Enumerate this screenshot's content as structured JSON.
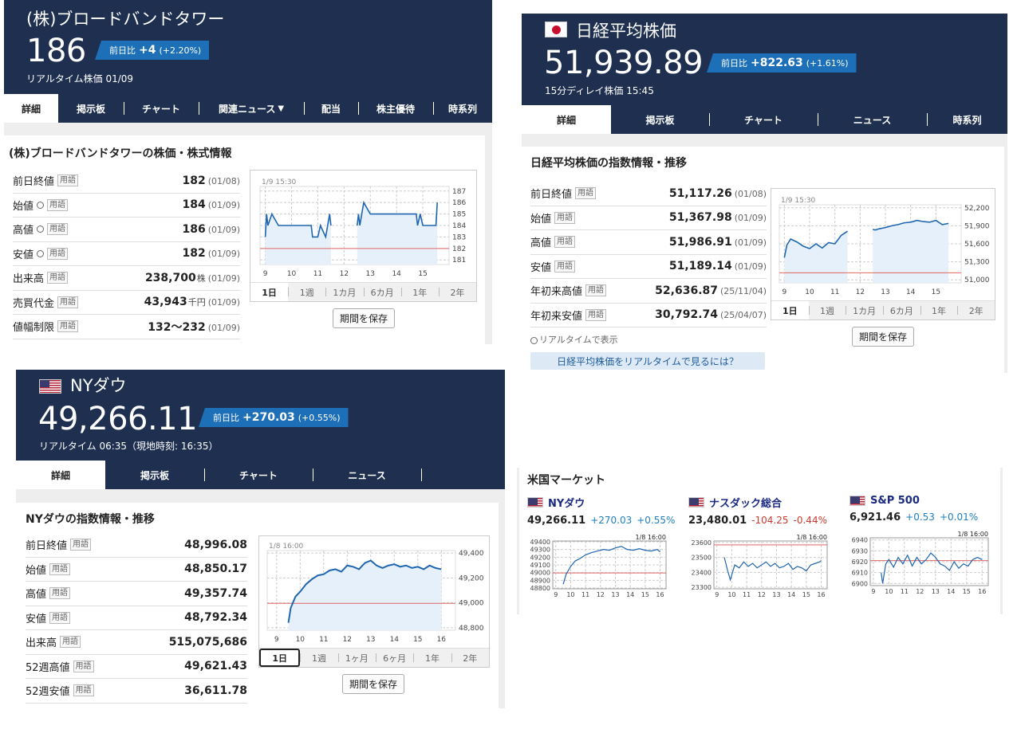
{
  "bbt": {
    "name": "(株)ブロードバンドタワー",
    "price": "186",
    "badge_label": "前日比",
    "change": "+4",
    "change_pct": "(+2.20%)",
    "realtime": "リアルタイム株価 01/09",
    "tabs": [
      "詳細",
      "掲示板",
      "チャート",
      "関連ニュース",
      "配当",
      "株主優待",
      "時系列"
    ],
    "section_title": "(株)ブロードバンドタワーの株価・株式情報",
    "rows": [
      {
        "label": "前日終値",
        "clock": false,
        "value": "182",
        "unit": "",
        "date": "(01/08)"
      },
      {
        "label": "始値",
        "clock": true,
        "value": "184",
        "unit": "",
        "date": "(01/09)"
      },
      {
        "label": "高値",
        "clock": true,
        "value": "186",
        "unit": "",
        "date": "(01/09)"
      },
      {
        "label": "安値",
        "clock": true,
        "value": "182",
        "unit": "",
        "date": "(01/09)"
      },
      {
        "label": "出来高",
        "clock": false,
        "value": "238,700",
        "unit": "株",
        "date": "(01/09)"
      },
      {
        "label": "売買代金",
        "clock": false,
        "value": "43,943",
        "unit": "千円",
        "date": "(01/09)"
      },
      {
        "label": "値幅制限",
        "clock": false,
        "value": "132〜232",
        "unit": "",
        "date": "(01/09)"
      }
    ],
    "term_label": "用語",
    "save_label": "期間を保存",
    "chart_tabs": [
      "1日",
      "1週",
      "1カ月",
      "6カ月",
      "1年",
      "2年"
    ]
  },
  "nikkei": {
    "name": "日経平均株価",
    "price": "51,939.89",
    "badge_label": "前日比",
    "change": "+822.63",
    "change_pct": "(+1.61%)",
    "realtime": "15分ディレイ株価 15:45",
    "tabs": [
      "詳細",
      "掲示板",
      "チャート",
      "ニュース",
      "時系列"
    ],
    "section_title": "日経平均株価の指数情報・推移",
    "rows": [
      {
        "label": "前日終値",
        "value": "51,117.26",
        "date": "(01/08)"
      },
      {
        "label": "始値",
        "value": "51,367.98",
        "date": "(01/09)"
      },
      {
        "label": "高値",
        "value": "51,986.91",
        "date": "(01/09)"
      },
      {
        "label": "安値",
        "value": "51,189.14",
        "date": "(01/09)"
      },
      {
        "label": "年初来高値",
        "value": "52,636.87",
        "date": "(25/11/04)"
      },
      {
        "label": "年初来安値",
        "value": "30,792.74",
        "date": "(25/04/07)"
      }
    ],
    "term_label": "用語",
    "realtime_note": "リアルタイムで表示",
    "realtime_link": "日経平均株価をリアルタイムで見るには？",
    "save_label": "期間を保存",
    "chart_tabs": [
      "1日",
      "1週",
      "1カ月",
      "6カ月",
      "1年",
      "2年"
    ]
  },
  "dow": {
    "name": "NYダウ",
    "price": "49,266.11",
    "badge_label": "前日比",
    "change": "+270.03",
    "change_pct": "(+0.55%)",
    "realtime": "リアルタイム 06:35（現地時刻: 16:35）",
    "tabs": [
      "詳細",
      "掲示板",
      "チャート",
      "ニュース",
      ""
    ],
    "section_title": "NYダウの指数情報・推移",
    "rows": [
      {
        "label": "前日終値",
        "value": "48,996.08"
      },
      {
        "label": "始値",
        "value": "48,850.17"
      },
      {
        "label": "高値",
        "value": "49,357.74"
      },
      {
        "label": "安値",
        "value": "48,792.34"
      },
      {
        "label": "出来高",
        "value": "515,075,686"
      },
      {
        "label": "52週高値",
        "value": "49,621.43"
      },
      {
        "label": "52週安値",
        "value": "36,611.78"
      }
    ],
    "term_label": "用語",
    "save_label": "期間を保存",
    "chart_tabs": [
      "1日",
      "1週",
      "1ヶ月",
      "6ヶ月",
      "1年",
      "2年"
    ]
  },
  "us_market": {
    "title": "米国マーケット",
    "items": [
      {
        "name": "NYダウ",
        "price": "49,266.11",
        "change": "+270.03",
        "pct": "+0.55%",
        "dir": "up"
      },
      {
        "name": "ナスダック総合",
        "price": "23,480.01",
        "change": "-104.25",
        "pct": "-0.44%",
        "dir": "down"
      },
      {
        "name": "S&P 500",
        "price": "6,921.46",
        "change": "+0.53",
        "pct": "+0.01%",
        "dir": "up"
      }
    ]
  },
  "chart_data": [
    {
      "id": "bbt",
      "type": "line",
      "timestamp": "1/9 15:30",
      "x_ticks": [
        "9",
        "10",
        "11",
        "12",
        "13",
        "14",
        "15"
      ],
      "y_ticks": [
        "187",
        "186",
        "185",
        "184",
        "183",
        "182",
        "181"
      ],
      "ylim": [
        180.6,
        187.4
      ],
      "xlim": [
        8.8,
        16
      ],
      "ref_value": 182,
      "x": [
        9,
        9.05,
        9.1,
        9.25,
        9.5,
        9.75,
        10,
        10.25,
        10.5,
        10.75,
        10.8,
        11,
        11.1,
        11.3,
        11.45,
        11.5,
        12.5,
        12.55,
        12.6,
        12.75,
        13,
        13.25,
        13.5,
        13.75,
        14,
        14.25,
        14.5,
        14.75,
        14.8,
        14.9,
        15,
        15.25,
        15.5,
        15.55
      ],
      "values": [
        183,
        185,
        184,
        185,
        184,
        184,
        184,
        184,
        184,
        184,
        183,
        183,
        184,
        183,
        185,
        184,
        184,
        185,
        184,
        186,
        185,
        185,
        185,
        185,
        185,
        185,
        185,
        185,
        184,
        185,
        184,
        184,
        184,
        186
      ]
    },
    {
      "id": "nikkei",
      "type": "line",
      "timestamp": "1/9 15:30",
      "x_ticks": [
        "9",
        "10",
        "11",
        "12",
        "13",
        "14",
        "15"
      ],
      "y_ticks": [
        "52,200",
        "51,900",
        "51,600",
        "51,300",
        "51,000"
      ],
      "ylim": [
        50950,
        52250
      ],
      "xlim": [
        8.8,
        16
      ],
      "ref_value": 51117,
      "x": [
        9,
        9.1,
        9.25,
        9.5,
        9.75,
        10,
        10.25,
        10.5,
        10.75,
        11,
        11.25,
        11.5,
        12.5,
        12.6,
        12.75,
        13,
        13.25,
        13.5,
        13.75,
        14,
        14.25,
        14.5,
        14.75,
        15,
        15.25,
        15.5
      ],
      "values": [
        51370,
        51580,
        51680,
        51630,
        51560,
        51520,
        51600,
        51530,
        51620,
        51600,
        51740,
        51810,
        51840,
        51830,
        51850,
        51870,
        51900,
        51920,
        51950,
        51960,
        51990,
        51970,
        51960,
        51990,
        51920,
        51940
      ]
    },
    {
      "id": "dow",
      "type": "line",
      "timestamp": "1/8 16:00",
      "x_ticks": [
        "9",
        "10",
        "11",
        "12",
        "13",
        "14",
        "15",
        "16"
      ],
      "y_ticks": [
        "49,400",
        "49,200",
        "49,000",
        "48,800"
      ],
      "ylim": [
        48780,
        49420
      ],
      "xlim": [
        8.6,
        16.6
      ],
      "ref_value": 48996,
      "x": [
        9.5,
        9.6,
        9.8,
        10,
        10.25,
        10.5,
        10.75,
        11,
        11.25,
        11.5,
        11.75,
        12,
        12.25,
        12.5,
        12.75,
        13,
        13.25,
        13.5,
        13.75,
        14,
        14.25,
        14.5,
        14.75,
        15,
        15.25,
        15.5,
        15.75,
        16
      ],
      "values": [
        48840,
        48960,
        49050,
        49090,
        49150,
        49190,
        49220,
        49230,
        49260,
        49270,
        49250,
        49300,
        49290,
        49270,
        49320,
        49340,
        49300,
        49280,
        49300,
        49310,
        49290,
        49300,
        49280,
        49290,
        49270,
        49300,
        49280,
        49270
      ]
    },
    {
      "id": "us1",
      "type": "line",
      "timestamp": "1/8 16:00",
      "x_ticks": [
        "9",
        "10",
        "11",
        "12",
        "13",
        "14",
        "15",
        "16"
      ],
      "y_ticks": [
        "49400",
        "49300",
        "49200",
        "49100",
        "49000",
        "48900",
        "48800"
      ],
      "ylim": [
        48790,
        49410
      ],
      "xlim": [
        8.8,
        16.4
      ],
      "ref_value": 48996,
      "x": [
        9.5,
        9.7,
        10,
        10.3,
        10.6,
        11,
        11.4,
        11.8,
        12.2,
        12.6,
        13,
        13.4,
        13.8,
        14.2,
        14.6,
        15,
        15.4,
        15.8,
        16
      ],
      "values": [
        48850,
        48980,
        49080,
        49150,
        49180,
        49230,
        49260,
        49280,
        49300,
        49290,
        49320,
        49340,
        49300,
        49290,
        49310,
        49290,
        49280,
        49300,
        49270
      ]
    },
    {
      "id": "us2",
      "type": "line",
      "timestamp": "1/8 16:00",
      "x_ticks": [
        "9",
        "10",
        "11",
        "12",
        "13",
        "14",
        "15",
        "16"
      ],
      "y_ticks": [
        "23600",
        "23500",
        "23400",
        "23300"
      ],
      "ylim": [
        23290,
        23610
      ],
      "xlim": [
        8.8,
        16.4
      ],
      "ref_value": 23584,
      "x": [
        9.5,
        9.7,
        9.9,
        10.2,
        10.5,
        10.8,
        11.1,
        11.4,
        11.7,
        12,
        12.3,
        12.6,
        12.9,
        13.2,
        13.5,
        13.8,
        14.1,
        14.4,
        14.7,
        15,
        15.3,
        15.6,
        15.9,
        16
      ],
      "values": [
        23500,
        23420,
        23350,
        23450,
        23430,
        23470,
        23440,
        23460,
        23430,
        23450,
        23470,
        23440,
        23460,
        23430,
        23440,
        23460,
        23420,
        23440,
        23430,
        23410,
        23450,
        23460,
        23470,
        23480
      ]
    },
    {
      "id": "us3",
      "type": "line",
      "timestamp": "1/8 16:00",
      "x_ticks": [
        "9",
        "10",
        "11",
        "12",
        "13",
        "14",
        "15",
        "16"
      ],
      "y_ticks": [
        "6940",
        "6930",
        "6920",
        "6910",
        "6900"
      ],
      "ylim": [
        6898,
        6942
      ],
      "xlim": [
        8.8,
        16.4
      ],
      "ref_value": 6921,
      "x": [
        9.5,
        9.6,
        9.8,
        10,
        10.3,
        10.6,
        10.9,
        11.2,
        11.5,
        11.8,
        12.1,
        12.4,
        12.7,
        13,
        13.3,
        13.6,
        13.9,
        14.2,
        14.5,
        14.8,
        15.1,
        15.4,
        15.7,
        16
      ],
      "values": [
        6910,
        6900,
        6918,
        6922,
        6915,
        6924,
        6918,
        6926,
        6916,
        6924,
        6918,
        6922,
        6928,
        6924,
        6918,
        6916,
        6912,
        6920,
        6914,
        6918,
        6916,
        6922,
        6924,
        6922
      ]
    }
  ],
  "colors": {
    "header_bg": "#1e2f4f",
    "badge_bg": "#1d6fb8",
    "line": "#1f66b0",
    "ref_line": "#e06666",
    "fill": "#e6f0fa"
  }
}
